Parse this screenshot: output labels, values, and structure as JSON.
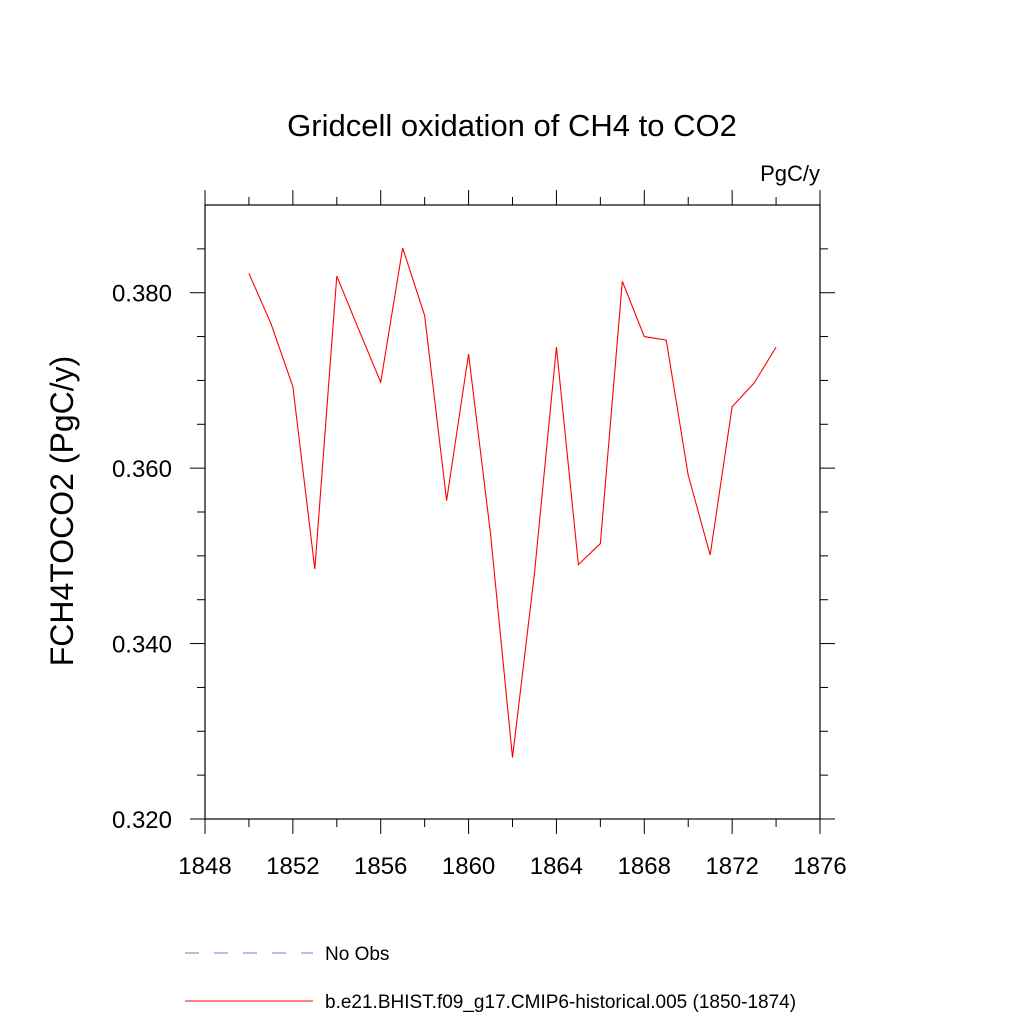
{
  "chart_data": {
    "type": "line",
    "title": "Gridcell oxidation of CH4 to CO2",
    "units_label": "PgC/y",
    "ylabel": "FCH4TOCO2  (PgC/y)",
    "xlabel": "",
    "xlim": [
      1848,
      1876
    ],
    "ylim": [
      0.32,
      0.39
    ],
    "x_ticks": [
      1848,
      1852,
      1856,
      1860,
      1864,
      1868,
      1872,
      1876
    ],
    "x_tick_labels": [
      "1848",
      "1852",
      "1856",
      "1860",
      "1864",
      "1868",
      "1872",
      "1876"
    ],
    "x_minor_step": 2,
    "y_ticks": [
      0.32,
      0.34,
      0.36,
      0.38
    ],
    "y_tick_labels": [
      "0.320",
      "0.340",
      "0.360",
      "0.380"
    ],
    "y_minor_step": 0.005,
    "grid": false,
    "series": [
      {
        "name": "b.e21.BHIST.f09_g17.CMIP6-historical.005 (1850-1874)",
        "color": "#ff0000",
        "dash": "solid",
        "x": [
          1850,
          1851,
          1852,
          1853,
          1854,
          1855,
          1856,
          1857,
          1858,
          1859,
          1860,
          1861,
          1862,
          1863,
          1864,
          1865,
          1866,
          1867,
          1868,
          1869,
          1870,
          1871,
          1872,
          1873,
          1874
        ],
        "values": [
          0.3822,
          0.3765,
          0.3693,
          0.3485,
          0.3819,
          0.3758,
          0.3698,
          0.3851,
          0.3774,
          0.3563,
          0.373,
          0.3525,
          0.327,
          0.348,
          0.3738,
          0.349,
          0.3514,
          0.3813,
          0.375,
          0.3746,
          0.3592,
          0.3501,
          0.367,
          0.3697,
          0.3738
        ]
      }
    ],
    "legend": [
      {
        "label": "No Obs",
        "color": "#7a7ad0",
        "dash": "dashed"
      },
      {
        "label": "b.e21.BHIST.f09_g17.CMIP6-historical.005 (1850-1874)",
        "color": "#ff0000",
        "dash": "solid"
      }
    ],
    "legend_position": "bottom"
  }
}
